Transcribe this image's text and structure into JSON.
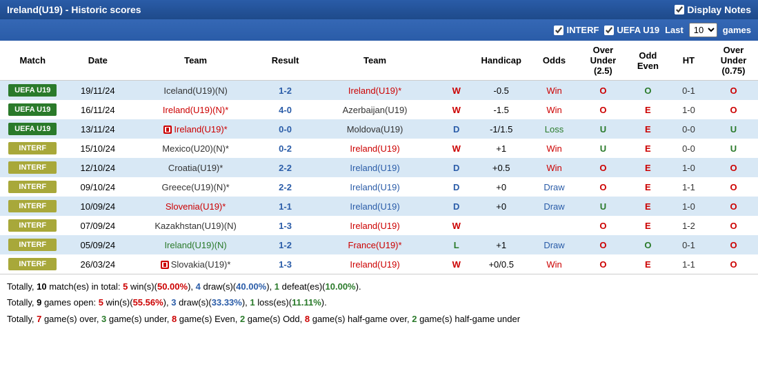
{
  "header": {
    "title": "Ireland(U19) - Historic scores",
    "displayNotes": "Display Notes"
  },
  "filters": {
    "interf": "INTERF",
    "uefa": "UEFA U19",
    "lastPrefix": "Last",
    "lastValue": "10",
    "lastSuffix": "games"
  },
  "columns": [
    "Match",
    "Date",
    "Team",
    "Result",
    "Team",
    "",
    "Handicap",
    "Odds",
    "Over Under (2.5)",
    "Odd Even",
    "HT",
    "Over Under (0.75)"
  ],
  "rows": [
    {
      "match": "UEFA U19",
      "matchClass": "badge-uefa",
      "date": "19/11/24",
      "team1": "Iceland(U19)(N)",
      "t1Class": "team-normal",
      "card1": false,
      "result": "1-2",
      "team2": "Ireland(U19)*",
      "t2Class": "team-home",
      "card2": false,
      "wl": "W",
      "wlClass": "wl-w",
      "hc": "-0.5",
      "odds": "Win",
      "oddsClass": "odds-win",
      "ou": "O",
      "ouClass": "ou-o",
      "oe": "O",
      "oeClass": "oe-o",
      "ht": "0-1",
      "ou2": "O",
      "ou2Class": "ou-o"
    },
    {
      "match": "UEFA U19",
      "matchClass": "badge-uefa",
      "date": "16/11/24",
      "team1": "Ireland(U19)(N)*",
      "t1Class": "team-home",
      "card1": false,
      "result": "4-0",
      "team2": "Azerbaijan(U19)",
      "t2Class": "team-normal",
      "card2": false,
      "wl": "W",
      "wlClass": "wl-w",
      "hc": "-1.5",
      "odds": "Win",
      "oddsClass": "odds-win",
      "ou": "O",
      "ouClass": "ou-o",
      "oe": "E",
      "oeClass": "oe-e",
      "ht": "1-0",
      "ou2": "O",
      "ou2Class": "ou-o"
    },
    {
      "match": "UEFA U19",
      "matchClass": "badge-uefa",
      "date": "13/11/24",
      "team1": "Ireland(U19)*",
      "t1Class": "team-home",
      "card1": true,
      "result": "0-0",
      "team2": "Moldova(U19)",
      "t2Class": "team-normal",
      "card2": false,
      "wl": "D",
      "wlClass": "wl-d",
      "hc": "-1/1.5",
      "odds": "Loss",
      "oddsClass": "odds-loss",
      "ou": "U",
      "ouClass": "ou-u",
      "oe": "E",
      "oeClass": "oe-e",
      "ht": "0-0",
      "ou2": "U",
      "ou2Class": "ou-u"
    },
    {
      "match": "INTERF",
      "matchClass": "badge-interf",
      "date": "15/10/24",
      "team1": "Mexico(U20)(N)*",
      "t1Class": "team-normal",
      "card1": false,
      "result": "0-2",
      "team2": "Ireland(U19)",
      "t2Class": "team-home",
      "card2": false,
      "wl": "W",
      "wlClass": "wl-w",
      "hc": "+1",
      "odds": "Win",
      "oddsClass": "odds-win",
      "ou": "U",
      "ouClass": "ou-u",
      "oe": "E",
      "oeClass": "oe-e",
      "ht": "0-0",
      "ou2": "U",
      "ou2Class": "ou-u"
    },
    {
      "match": "INTERF",
      "matchClass": "badge-interf",
      "date": "12/10/24",
      "team1": "Croatia(U19)*",
      "t1Class": "team-normal",
      "card1": false,
      "result": "2-2",
      "team2": "Ireland(U19)",
      "t2Class": "team-away",
      "card2": false,
      "wl": "D",
      "wlClass": "wl-d",
      "hc": "+0.5",
      "odds": "Win",
      "oddsClass": "odds-win",
      "ou": "O",
      "ouClass": "ou-o",
      "oe": "E",
      "oeClass": "oe-e",
      "ht": "1-0",
      "ou2": "O",
      "ou2Class": "ou-o"
    },
    {
      "match": "INTERF",
      "matchClass": "badge-interf",
      "date": "09/10/24",
      "team1": "Greece(U19)(N)*",
      "t1Class": "team-normal",
      "card1": false,
      "result": "2-2",
      "team2": "Ireland(U19)",
      "t2Class": "team-away",
      "card2": false,
      "wl": "D",
      "wlClass": "wl-d",
      "hc": "+0",
      "odds": "Draw",
      "oddsClass": "odds-draw",
      "ou": "O",
      "ouClass": "ou-o",
      "oe": "E",
      "oeClass": "oe-e",
      "ht": "1-1",
      "ou2": "O",
      "ou2Class": "ou-o"
    },
    {
      "match": "INTERF",
      "matchClass": "badge-interf",
      "date": "10/09/24",
      "team1": "Slovenia(U19)*",
      "t1Class": "team-home",
      "card1": false,
      "result": "1-1",
      "team2": "Ireland(U19)",
      "t2Class": "team-away",
      "card2": false,
      "wl": "D",
      "wlClass": "wl-d",
      "hc": "+0",
      "odds": "Draw",
      "oddsClass": "odds-draw",
      "ou": "U",
      "ouClass": "ou-u",
      "oe": "E",
      "oeClass": "oe-e",
      "ht": "1-0",
      "ou2": "O",
      "ou2Class": "ou-o"
    },
    {
      "match": "INTERF",
      "matchClass": "badge-interf",
      "date": "07/09/24",
      "team1": "Kazakhstan(U19)(N)",
      "t1Class": "team-normal",
      "card1": false,
      "result": "1-3",
      "team2": "Ireland(U19)",
      "t2Class": "team-home",
      "card2": false,
      "wl": "W",
      "wlClass": "wl-w",
      "hc": "",
      "odds": "",
      "oddsClass": "",
      "ou": "O",
      "ouClass": "ou-o",
      "oe": "E",
      "oeClass": "oe-e",
      "ht": "1-2",
      "ou2": "O",
      "ou2Class": "ou-o"
    },
    {
      "match": "INTERF",
      "matchClass": "badge-interf",
      "date": "05/09/24",
      "team1": "Ireland(U19)(N)",
      "t1Class": "team-ireland",
      "card1": false,
      "result": "1-2",
      "team2": "France(U19)*",
      "t2Class": "team-home",
      "card2": false,
      "wl": "L",
      "wlClass": "wl-l",
      "hc": "+1",
      "odds": "Draw",
      "oddsClass": "odds-draw",
      "ou": "O",
      "ouClass": "ou-o",
      "oe": "O",
      "oeClass": "oe-o",
      "ht": "0-1",
      "ou2": "O",
      "ou2Class": "ou-o"
    },
    {
      "match": "INTERF",
      "matchClass": "badge-interf",
      "date": "26/03/24",
      "team1": "Slovakia(U19)*",
      "t1Class": "team-normal",
      "card1": true,
      "result": "1-3",
      "team2": "Ireland(U19)",
      "t2Class": "team-home",
      "card2": false,
      "wl": "W",
      "wlClass": "wl-w",
      "hc": "+0/0.5",
      "odds": "Win",
      "oddsClass": "odds-win",
      "ou": "O",
      "ouClass": "ou-o",
      "oe": "E",
      "oeClass": "oe-e",
      "ht": "1-1",
      "ou2": "O",
      "ou2Class": "ou-o"
    }
  ],
  "summary": {
    "line1": {
      "prefix": "Totally, ",
      "t1": "10",
      "t2": " match(es) in total: ",
      "w": "5",
      "wt": " win(s)(",
      "wp": "50.00%",
      "wt2": "), ",
      "d": "4",
      "dt": " draw(s)(",
      "dp": "40.00%",
      "dt2": "), ",
      "l": "1",
      "lt": " defeat(es)(",
      "lp": "10.00%",
      "lt2": ")."
    },
    "line2": {
      "prefix": "Totally, ",
      "t1": "9",
      "t2": " games open: ",
      "w": "5",
      "wt": " win(s)(",
      "wp": "55.56%",
      "wt2": "), ",
      "d": "3",
      "dt": " draw(s)(",
      "dp": "33.33%",
      "dt2": "), ",
      "l": "1",
      "lt": " loss(es)(",
      "lp": "11.11%",
      "lt2": ")."
    },
    "line3": {
      "prefix": "Totally, ",
      "o": "7",
      "ot": " game(s) over, ",
      "u": "3",
      "ut": " game(s) under, ",
      "e": "8",
      "et": " game(s) Even, ",
      "od": "2",
      "odt": " game(s) Odd, ",
      "ho": "8",
      "hot": " game(s) half-game over, ",
      "hu": "2",
      "hut": " game(s) half-game under"
    }
  }
}
